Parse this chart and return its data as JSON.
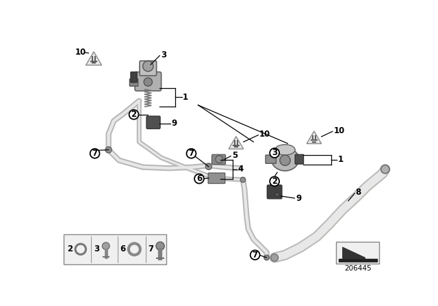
{
  "bg_color": "#ffffff",
  "catalog_number": "206445",
  "tube_color": "#b8b8b8",
  "tube_edge": "#888888",
  "pump_body": "#a0a0a0",
  "pump_dark": "#606060",
  "pump_light": "#d0d0d0",
  "label_color": "#000000",
  "circle_bg": "#ffffff",
  "circle_edge": "#000000",
  "line_color": "#000000",
  "lw_tube": 6.0,
  "lw_label": 0.9,
  "legend_bg": "#f0f0f0",
  "legend_edge": "#888888",
  "tri_edge": "#888888",
  "tri_fill": "#e8e8e8",
  "tri_inner": "#606060"
}
